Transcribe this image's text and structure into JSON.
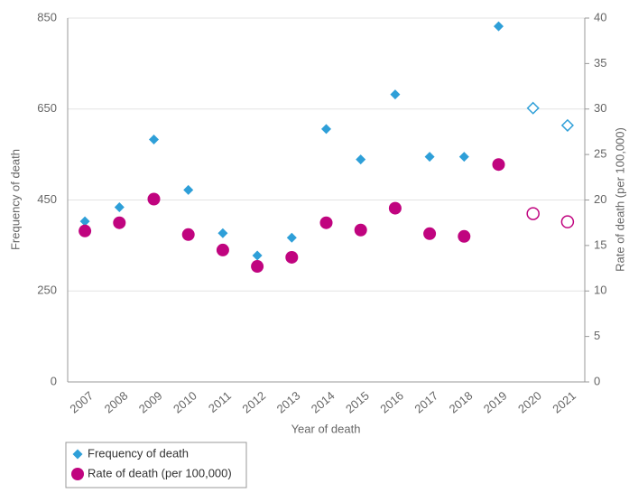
{
  "chart_data": {
    "type": "scatter",
    "x_label": "Year of death",
    "y_label": "Frequency of death",
    "y2_label": "Rate of death (per 100,000)",
    "categories": [
      "2007",
      "2008",
      "2009",
      "2010",
      "2011",
      "2012",
      "2013",
      "2014",
      "2015",
      "2016",
      "2017",
      "2018",
      "2019",
      "2020",
      "2021"
    ],
    "series": [
      {
        "name": "Frequency of death",
        "color": "#2e9fd8",
        "marker": "diamond",
        "axis": "y",
        "values": [
          403,
          434,
          583,
          472,
          377,
          328,
          367,
          606,
          539,
          682,
          545,
          545,
          832,
          652,
          614
        ],
        "hollow": [
          false,
          false,
          false,
          false,
          false,
          false,
          false,
          false,
          false,
          false,
          false,
          false,
          false,
          true,
          true
        ]
      },
      {
        "name": "Rate of death (per 100,000)",
        "color": "#c0047f",
        "marker": "circle",
        "axis": "y2",
        "values": [
          16.6,
          17.5,
          20.1,
          16.2,
          14.5,
          12.7,
          13.7,
          17.5,
          16.7,
          19.1,
          16.3,
          16.0,
          23.9,
          18.5,
          17.6
        ],
        "hollow": [
          false,
          false,
          false,
          false,
          false,
          false,
          false,
          false,
          false,
          false,
          false,
          false,
          false,
          true,
          true
        ]
      }
    ],
    "ylim": [
      0,
      850
    ],
    "yticks": [
      0,
      250,
      450,
      650,
      850
    ],
    "y2lim": [
      0,
      40
    ],
    "y2ticks": [
      0,
      5,
      10,
      15,
      20,
      25,
      30,
      35,
      40
    ],
    "grid": true,
    "legend": "bottom-left"
  }
}
